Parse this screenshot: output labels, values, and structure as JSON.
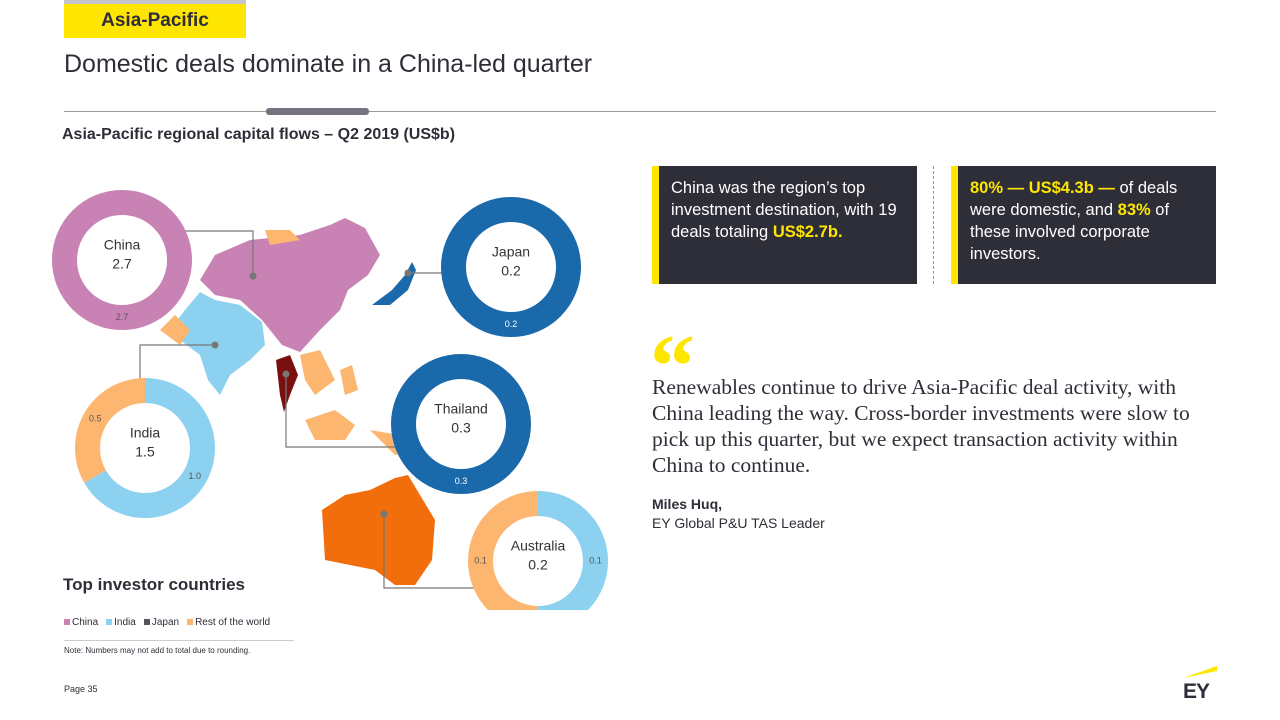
{
  "header": {
    "tag": "Asia-Pacific",
    "title": "Domestic deals dominate in a China-led quarter"
  },
  "section_title": "Asia-Pacific regional capital flows – Q2 2019 (US$b)",
  "chart_data": [
    {
      "type": "donut",
      "title": "China",
      "total": 2.7,
      "values": [
        2.7
      ],
      "colors": [
        "#c882b4"
      ]
    },
    {
      "type": "donut",
      "title": "Japan",
      "total": 0.2,
      "values": [
        0.2
      ],
      "colors": [
        "#1a69ab"
      ]
    },
    {
      "type": "donut",
      "title": "India",
      "total": 1.5,
      "values": [
        1.0,
        0.5
      ],
      "value_labels": [
        "1.0",
        "0.5"
      ],
      "colors": [
        "#8dd1f0",
        "#fdb66f"
      ]
    },
    {
      "type": "donut",
      "title": "Thailand",
      "total": 0.3,
      "values": [
        0.3
      ],
      "colors": [
        "#1a69ab"
      ]
    },
    {
      "type": "donut",
      "title": "Australia",
      "total": 0.2,
      "values": [
        0.1,
        0.1
      ],
      "colors": [
        "#8dd1f0",
        "#fdb66f"
      ]
    }
  ],
  "legend": {
    "title": "Top investor countries",
    "items": [
      {
        "name": "China",
        "color": "#c882b4"
      },
      {
        "name": "India",
        "color": "#8dd1f0"
      },
      {
        "name": "Japan",
        "color": "#55555f"
      },
      {
        "name": "Rest of the world",
        "color": "#fdb66f"
      }
    ]
  },
  "note": "Note: Numbers may not add to total due to rounding.",
  "callouts": [
    [
      {
        "text": "China was the region’s top investment destination, with 19 deals totaling ",
        "highlight": false
      },
      {
        "text": "US$2.7b.",
        "highlight": true
      }
    ],
    [
      {
        "text": "80% — US$4.3b —",
        "highlight": true
      },
      {
        "text": " of deals were domestic, and ",
        "highlight": false
      },
      {
        "text": "83%",
        "highlight": true
      },
      {
        "text": " of these involved corporate investors.",
        "highlight": false
      }
    ]
  ],
  "quote": {
    "mark": "“",
    "text": "Renewables continue to drive Asia-Pacific deal activity, with China leading the way. Cross-border investments were slow to pick up this quarter, but we expect transaction activity within China to continue.",
    "author": "Miles Huq,",
    "role": "EY Global P&U TAS Leader"
  },
  "page": "Page 35",
  "logo": "EY"
}
